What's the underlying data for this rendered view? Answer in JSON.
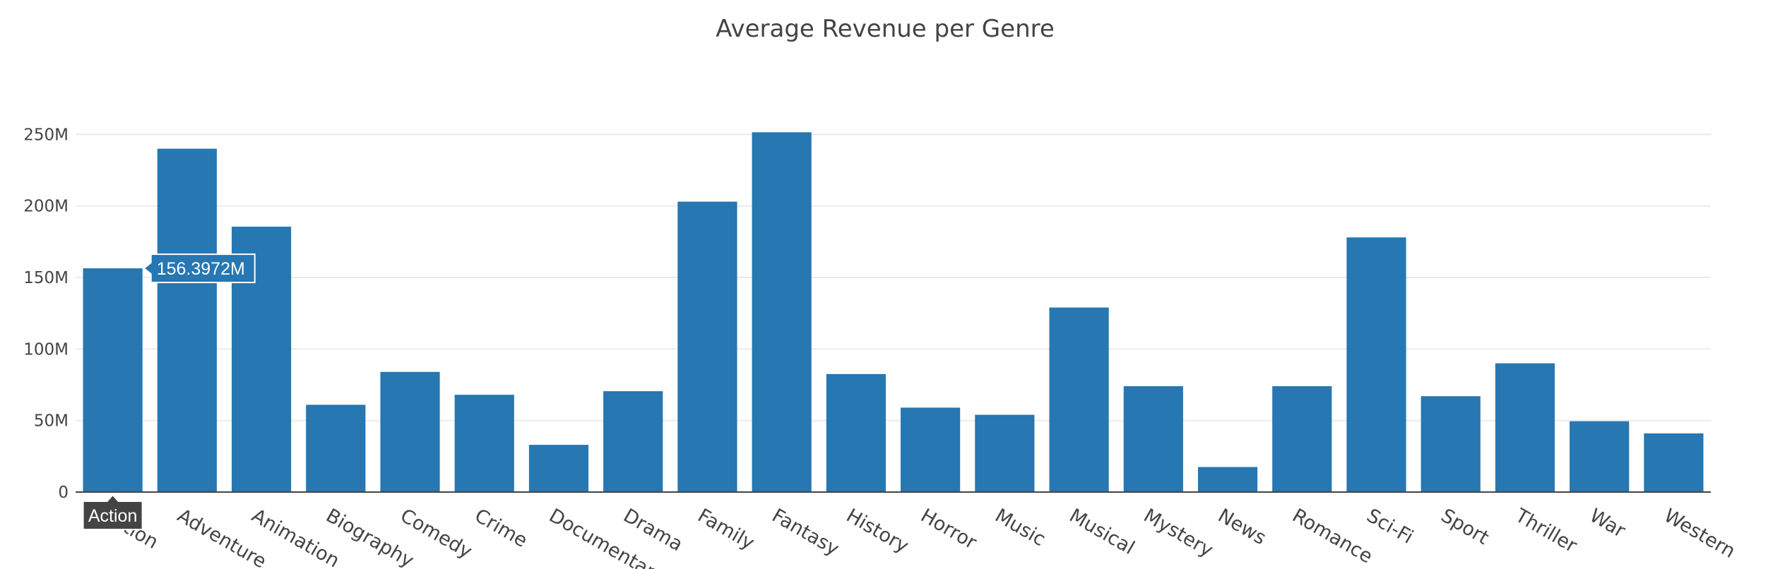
{
  "colors": {
    "bar": "#2677b2",
    "grid": "#ebebeb",
    "axis_line": "#444444",
    "hover_value_bg": "#2677b2",
    "hover_cat_bg": "#444444"
  },
  "hover": {
    "category": "Action",
    "value_label": "156.3972M"
  },
  "chart_data": {
    "type": "bar",
    "title": "Average Revenue per Genre",
    "xlabel": "",
    "ylabel": "",
    "categories": [
      "Action",
      "Adventure",
      "Animation",
      "Biography",
      "Comedy",
      "Crime",
      "Documentary",
      "Drama",
      "Family",
      "Fantasy",
      "History",
      "Horror",
      "Music",
      "Musical",
      "Mystery",
      "News",
      "Romance",
      "Sci-Fi",
      "Sport",
      "Thriller",
      "War",
      "Western"
    ],
    "values": [
      156.3972,
      240,
      185.5,
      61,
      84,
      68,
      33,
      70.5,
      203,
      251.5,
      82.5,
      59,
      54,
      129,
      74,
      17.5,
      74,
      178,
      67,
      90,
      49.5,
      41
    ],
    "value_unit": "M",
    "ylim": [
      0,
      265
    ],
    "yticks": [
      0,
      50,
      100,
      150,
      200,
      250
    ],
    "ytick_labels": [
      "0",
      "50M",
      "100M",
      "150M",
      "200M",
      "250M"
    ],
    "grid": true,
    "legend": "none"
  }
}
